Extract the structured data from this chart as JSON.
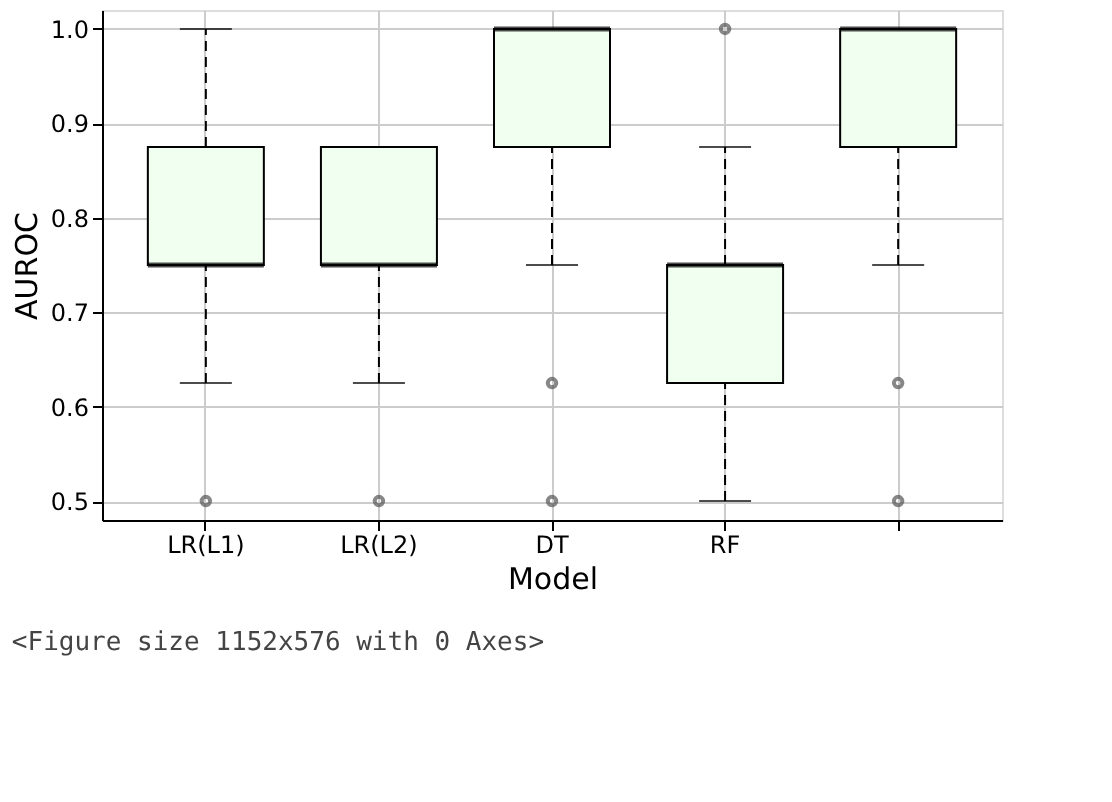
{
  "chart_data": {
    "type": "box",
    "xlabel": "Model",
    "ylabel": "AUROC",
    "categories": [
      "LR(L1)",
      "LR(L2)",
      "DT",
      "RF",
      null
    ],
    "color": "#f0fff0",
    "boxes": [
      {
        "low": 0.625,
        "q1": 0.75,
        "median": 0.75,
        "q3": 0.875,
        "high": 1.0,
        "outliers": [
          0.5
        ]
      },
      {
        "low": 0.625,
        "q1": 0.75,
        "median": 0.75,
        "q3": 0.875,
        "high": 0.875,
        "outliers": [
          0.5
        ]
      },
      {
        "low": 0.75,
        "q1": 0.875,
        "median": 1.0,
        "q3": 1.0,
        "high": 1.0,
        "outliers": [
          0.625,
          0.5
        ]
      },
      {
        "low": 0.5,
        "q1": 0.625,
        "median": 0.75,
        "q3": 0.75,
        "high": 0.875,
        "outliers": [
          1.0
        ]
      },
      {
        "low": 0.75,
        "q1": 0.875,
        "median": 1.0,
        "q3": 1.0,
        "high": 1.0,
        "outliers": [
          0.625,
          0.5
        ]
      }
    ],
    "ylim": [
      0.48,
      1.02
    ],
    "yticks": [
      0.5,
      0.6,
      0.7,
      0.8,
      0.9,
      {
        "value": 1,
        "label": "1.0"
      }
    ],
    "grid": true,
    "line_style": "dashed",
    "marker": "circle",
    "annotations": [
      "<Figure size 1152x576 with 0 Axes>"
    ]
  }
}
